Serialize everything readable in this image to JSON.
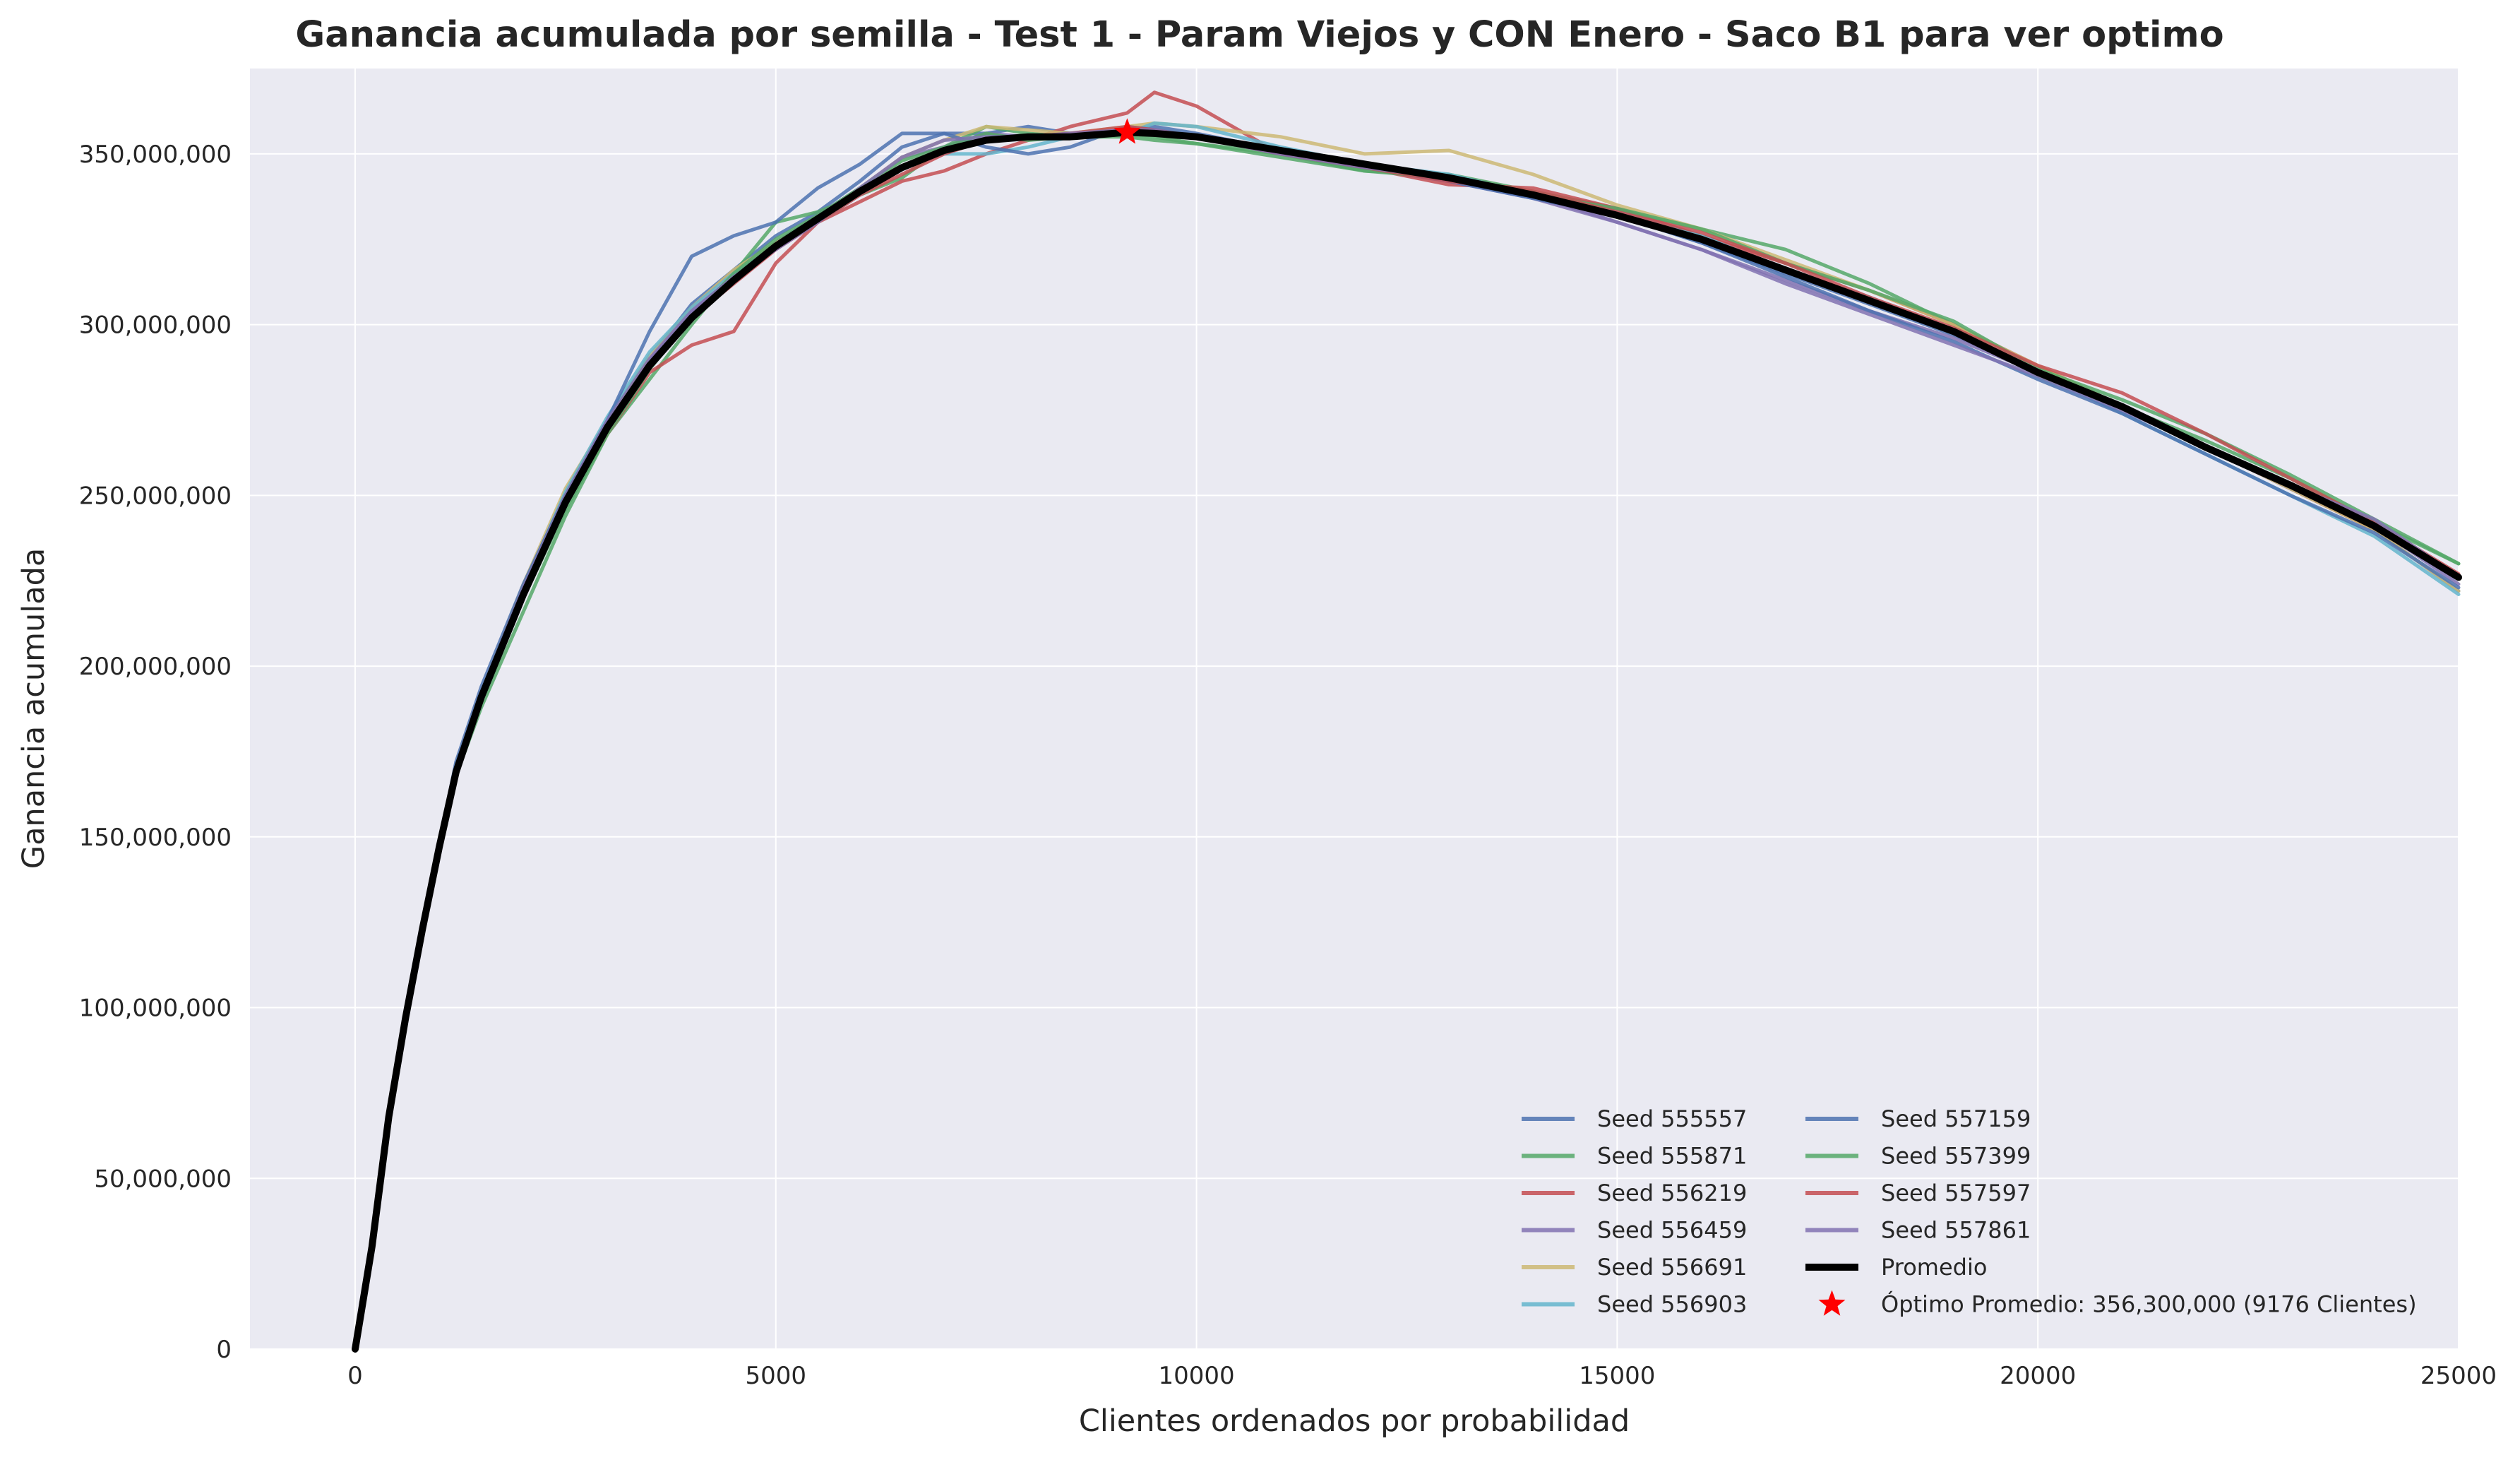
{
  "chart_data": {
    "type": "line",
    "title": "Ganancia acumulada por semilla - Test 1 - Param Viejos y CON Enero - Saco B1 para ver optimo",
    "xlabel": "Clientes ordenados por probabilidad",
    "ylabel": "Ganancia acumulada",
    "xlim": [
      -1250,
      25000
    ],
    "ylim": [
      0,
      375000000
    ],
    "x_ticks": [
      0,
      5000,
      10000,
      15000,
      20000,
      25000
    ],
    "x_tick_labels": [
      "0",
      "5000",
      "10000",
      "15000",
      "20000",
      "25000"
    ],
    "y_ticks": [
      0,
      50000000,
      100000000,
      150000000,
      200000000,
      250000000,
      300000000,
      350000000
    ],
    "y_tick_labels": [
      "0",
      "50,000,000",
      "100,000,000",
      "150,000,000",
      "200,000,000",
      "250,000,000",
      "300,000,000",
      "350,000,000"
    ],
    "grid": true,
    "legend_placement": "lower-right",
    "legend_columns": 2,
    "x": [
      0,
      200,
      400,
      600,
      800,
      1000,
      1200,
      1500,
      2000,
      2500,
      3000,
      3500,
      4000,
      4500,
      5000,
      5500,
      6000,
      6500,
      7000,
      7500,
      8000,
      8500,
      9176,
      9500,
      10000,
      11000,
      12000,
      13000,
      14000,
      15000,
      16000,
      17000,
      18000,
      19000,
      20000,
      21000,
      22000,
      23000,
      24000,
      25000
    ],
    "series": [
      {
        "name": "Seed 555557",
        "color": "#4c72b0",
        "values": [
          0,
          32000000,
          70000000,
          98000000,
          124000000,
          148000000,
          170000000,
          192000000,
          222000000,
          250000000,
          272000000,
          290000000,
          306000000,
          316000000,
          326000000,
          333000000,
          342000000,
          352000000,
          356000000,
          356000000,
          358000000,
          356000000,
          357000000,
          358000000,
          356000000,
          351000000,
          346000000,
          343000000,
          337000000,
          332000000,
          324000000,
          315000000,
          306000000,
          297000000,
          286000000,
          276000000,
          264000000,
          252000000,
          240000000,
          222000000
        ]
      },
      {
        "name": "Seed 555871",
        "color": "#55a868",
        "values": [
          0,
          30000000,
          68000000,
          96000000,
          122000000,
          146000000,
          168000000,
          188000000,
          216000000,
          244000000,
          268000000,
          284000000,
          300000000,
          315000000,
          330000000,
          333000000,
          338000000,
          343000000,
          352000000,
          358000000,
          356000000,
          355000000,
          356000000,
          355000000,
          353000000,
          350000000,
          345000000,
          344000000,
          339000000,
          334000000,
          328000000,
          322000000,
          312000000,
          300000000,
          285000000,
          276000000,
          266000000,
          255000000,
          242000000,
          230000000
        ]
      },
      {
        "name": "Seed 556219",
        "color": "#c44e52",
        "values": [
          0,
          30000000,
          68000000,
          96000000,
          122000000,
          146000000,
          168000000,
          190000000,
          220000000,
          248000000,
          268000000,
          286000000,
          294000000,
          298000000,
          318000000,
          330000000,
          336000000,
          342000000,
          345000000,
          350000000,
          354000000,
          358000000,
          362000000,
          368000000,
          364000000,
          350000000,
          346000000,
          341000000,
          340000000,
          334000000,
          326000000,
          318000000,
          310000000,
          300000000,
          288000000,
          276000000,
          264000000,
          252000000,
          240000000,
          226000000
        ]
      },
      {
        "name": "Seed 556459",
        "color": "#8172b2",
        "values": [
          0,
          31000000,
          69000000,
          97000000,
          123000000,
          147000000,
          170000000,
          192000000,
          222000000,
          250000000,
          272000000,
          290000000,
          304000000,
          314000000,
          324000000,
          332000000,
          340000000,
          349000000,
          352000000,
          356000000,
          355000000,
          356000000,
          357000000,
          357000000,
          355000000,
          350000000,
          346000000,
          342000000,
          337000000,
          330000000,
          322000000,
          313000000,
          304000000,
          296000000,
          286000000,
          276000000,
          264000000,
          252000000,
          241000000,
          224000000
        ]
      },
      {
        "name": "Seed 556691",
        "color": "#ccb974",
        "values": [
          0,
          28000000,
          66000000,
          95000000,
          121000000,
          146000000,
          169000000,
          192000000,
          224000000,
          252000000,
          272000000,
          291000000,
          305000000,
          316000000,
          324000000,
          331000000,
          340000000,
          349000000,
          354000000,
          358000000,
          357000000,
          356000000,
          358000000,
          359000000,
          358000000,
          355000000,
          350000000,
          351000000,
          344000000,
          335000000,
          328000000,
          319000000,
          310000000,
          300000000,
          288000000,
          276000000,
          264000000,
          252000000,
          240000000,
          222000000
        ]
      },
      {
        "name": "Seed 556903",
        "color": "#64b5cd",
        "values": [
          0,
          30000000,
          69000000,
          98000000,
          125000000,
          149000000,
          171000000,
          192000000,
          223000000,
          251000000,
          273000000,
          292000000,
          305000000,
          315000000,
          323000000,
          330000000,
          338000000,
          346000000,
          350000000,
          350000000,
          352000000,
          355000000,
          356000000,
          359000000,
          358000000,
          352000000,
          347000000,
          344000000,
          338000000,
          333000000,
          326000000,
          316000000,
          308000000,
          298000000,
          286000000,
          274000000,
          262000000,
          250000000,
          238000000,
          221000000
        ]
      },
      {
        "name": "Seed 557159",
        "color": "#4c72b0",
        "values": [
          0,
          32000000,
          70000000,
          98000000,
          124000000,
          148000000,
          172000000,
          194000000,
          224000000,
          250000000,
          272000000,
          298000000,
          320000000,
          326000000,
          330000000,
          340000000,
          347000000,
          356000000,
          356000000,
          352000000,
          350000000,
          352000000,
          358000000,
          357000000,
          355000000,
          350000000,
          346000000,
          342000000,
          337000000,
          332000000,
          324000000,
          314000000,
          304000000,
          295000000,
          284000000,
          274000000,
          262000000,
          250000000,
          239000000,
          223000000
        ]
      },
      {
        "name": "Seed 557399",
        "color": "#55a868",
        "values": [
          0,
          30000000,
          68000000,
          96000000,
          122000000,
          146000000,
          168000000,
          190000000,
          220000000,
          246000000,
          268000000,
          287000000,
          302000000,
          315000000,
          325000000,
          332000000,
          340000000,
          348000000,
          352000000,
          356000000,
          354000000,
          355000000,
          355000000,
          354000000,
          353000000,
          349000000,
          345000000,
          343000000,
          338000000,
          334000000,
          328000000,
          318000000,
          310000000,
          301000000,
          287000000,
          278000000,
          268000000,
          256000000,
          243000000,
          230000000
        ]
      },
      {
        "name": "Seed 557597",
        "color": "#c44e52",
        "values": [
          0,
          31000000,
          69000000,
          97000000,
          123000000,
          147000000,
          169000000,
          191000000,
          222000000,
          249000000,
          270000000,
          288000000,
          302000000,
          312000000,
          322000000,
          330000000,
          338000000,
          344000000,
          350000000,
          354000000,
          355000000,
          356000000,
          358000000,
          357000000,
          355000000,
          350000000,
          346000000,
          342000000,
          339000000,
          333000000,
          327000000,
          318000000,
          308000000,
          299000000,
          288000000,
          280000000,
          268000000,
          255000000,
          242000000,
          227000000
        ]
      },
      {
        "name": "Seed 557861",
        "color": "#8172b2",
        "values": [
          0,
          31000000,
          69000000,
          97000000,
          123000000,
          147000000,
          170000000,
          192000000,
          223000000,
          250000000,
          272000000,
          290000000,
          304000000,
          314000000,
          322000000,
          330000000,
          340000000,
          349000000,
          354000000,
          355000000,
          355000000,
          356000000,
          357000000,
          357000000,
          355000000,
          350000000,
          346000000,
          343000000,
          338000000,
          330000000,
          322000000,
          312000000,
          303000000,
          294000000,
          285000000,
          275000000,
          264000000,
          253000000,
          243000000,
          226000000
        ]
      },
      {
        "name": "Promedio",
        "color": "#000000",
        "values": [
          0,
          30000000,
          68000000,
          97000000,
          123000000,
          147000000,
          169000000,
          191000000,
          221000000,
          248000000,
          270000000,
          288000000,
          302000000,
          313000000,
          323000000,
          331000000,
          339000000,
          346000000,
          351000000,
          354000000,
          355000000,
          355000000,
          356300000,
          356000000,
          355000000,
          351000000,
          347000000,
          343000000,
          338000000,
          332000000,
          325000000,
          316000000,
          307000000,
          298000000,
          286000000,
          276000000,
          264000000,
          253000000,
          241000000,
          226000000
        ]
      }
    ],
    "optimum": {
      "label": "Óptimo Promedio: 356,300,000 (9176 Clientes)",
      "x": 9176,
      "y": 356300000,
      "color": "#ff0000"
    }
  }
}
